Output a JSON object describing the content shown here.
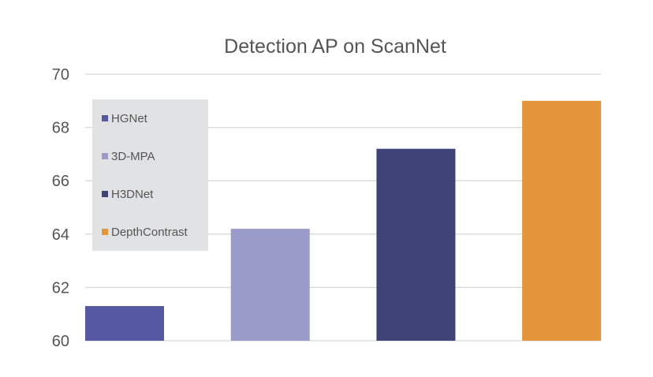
{
  "chart_data": {
    "type": "bar",
    "title": "Detection AP on ScanNet",
    "xlabel": "",
    "ylabel": "",
    "categories": [
      "HGNet",
      "3D-MPA",
      "H3DNet",
      "DepthContrast"
    ],
    "values": [
      61.3,
      64.2,
      67.2,
      69.0
    ],
    "colors": [
      "#5659a1",
      "#9b9bc9",
      "#3f4276",
      "#e5963a"
    ],
    "ylim": [
      60,
      70
    ],
    "yticks": [
      "60",
      "62",
      "64",
      "66",
      "68",
      "70"
    ],
    "grid": true,
    "legend_placement": "top-left",
    "legend_background": "#e1e2e4"
  }
}
